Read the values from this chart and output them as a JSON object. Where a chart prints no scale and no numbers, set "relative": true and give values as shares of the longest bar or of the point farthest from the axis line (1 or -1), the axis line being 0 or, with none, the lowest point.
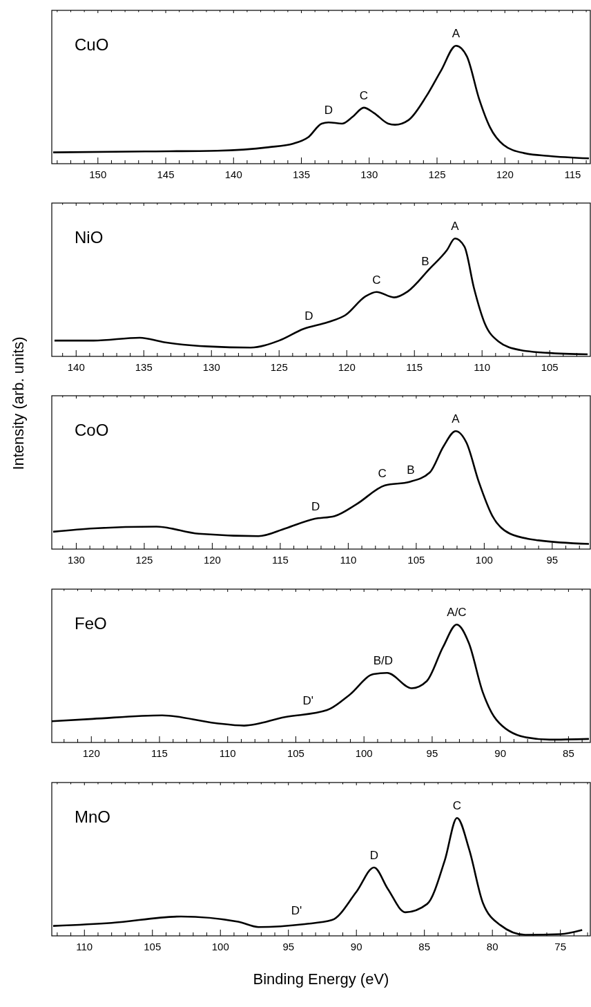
{
  "chart_data": [
    {
      "type": "line",
      "title": "CuO",
      "relative": true,
      "color": "#000000",
      "x": [
        153.3,
        146.5,
        141.2,
        137.4,
        135.6,
        134.5,
        133.5,
        133.0,
        132.0,
        131.2,
        130.4,
        129.65,
        128.6,
        128.1,
        127.1,
        125.8,
        124.7,
        123.6,
        122.8,
        121.9,
        121.1,
        120.1,
        118.6,
        116.8,
        113.8
      ],
      "values": [
        0.096,
        0.104,
        0.11,
        0.14,
        0.17,
        0.224,
        0.34,
        0.35,
        0.34,
        0.4,
        0.475,
        0.43,
        0.34,
        0.33,
        0.37,
        0.57,
        0.79,
        1.0,
        0.91,
        0.55,
        0.31,
        0.16,
        0.09,
        0.066,
        0.045
      ],
      "xlim": [
        153.4,
        113.7
      ],
      "xticks": [
        {
          "value": 153,
          "label": null
        },
        {
          "value": 152,
          "label": null
        },
        {
          "value": 151,
          "label": null
        },
        150,
        {
          "value": 149,
          "label": null
        },
        {
          "value": 148,
          "label": null
        },
        {
          "value": 147,
          "label": null
        },
        {
          "value": 146,
          "label": null
        },
        145,
        {
          "value": 144,
          "label": null
        },
        {
          "value": 143,
          "label": null
        },
        {
          "value": 142,
          "label": null
        },
        {
          "value": 141,
          "label": null
        },
        140,
        {
          "value": 139,
          "label": null
        },
        {
          "value": 138,
          "label": null
        },
        {
          "value": 137,
          "label": null
        },
        {
          "value": 136,
          "label": null
        },
        135,
        {
          "value": 134,
          "label": null
        },
        {
          "value": 133,
          "label": null
        },
        {
          "value": 132,
          "label": null
        },
        {
          "value": 131,
          "label": null
        },
        130,
        {
          "value": 129,
          "label": null
        },
        {
          "value": 128,
          "label": null
        },
        {
          "value": 127,
          "label": null
        },
        {
          "value": 126,
          "label": null
        },
        125,
        {
          "value": 124,
          "label": null
        },
        {
          "value": 123,
          "label": null
        },
        {
          "value": 122,
          "label": null
        },
        {
          "value": 121,
          "label": null
        },
        120,
        {
          "value": 119,
          "label": null
        },
        {
          "value": 118,
          "label": null
        },
        {
          "value": 117,
          "label": null
        },
        {
          "value": 116,
          "label": null
        },
        115,
        {
          "value": 114,
          "label": null
        }
      ],
      "annotations": [
        {
          "text": "D",
          "x": 133.0,
          "y": 0.35
        },
        {
          "text": "C",
          "x": 130.4,
          "y": 0.475
        },
        {
          "text": "A",
          "x": 123.6,
          "y": 1.0
        }
      ]
    },
    {
      "type": "line",
      "title": "NiO",
      "relative": true,
      "color": "#000000",
      "x": [
        141.6,
        138.7,
        135.3,
        133.5,
        130.2,
        127.1,
        125.0,
        123.2,
        121.4,
        120.1,
        118.6,
        117.8,
        116.5,
        115.5,
        113.9,
        112.6,
        112.0,
        111.3,
        110.6,
        109.8,
        108.8,
        107.2,
        105.2,
        102.2
      ],
      "values": [
        0.134,
        0.134,
        0.158,
        0.12,
        0.084,
        0.075,
        0.134,
        0.233,
        0.29,
        0.35,
        0.51,
        0.546,
        0.5,
        0.55,
        0.74,
        0.9,
        1.0,
        0.93,
        0.58,
        0.28,
        0.128,
        0.054,
        0.03,
        0.018
      ],
      "xlim": [
        141.8,
        102.0
      ],
      "xticks": [
        {
          "value": 141,
          "label": null
        },
        140,
        {
          "value": 139,
          "label": null
        },
        {
          "value": 138,
          "label": null
        },
        {
          "value": 137,
          "label": null
        },
        {
          "value": 136,
          "label": null
        },
        135,
        {
          "value": 134,
          "label": null
        },
        {
          "value": 133,
          "label": null
        },
        {
          "value": 132,
          "label": null
        },
        {
          "value": 131,
          "label": null
        },
        130,
        {
          "value": 129,
          "label": null
        },
        {
          "value": 128,
          "label": null
        },
        {
          "value": 127,
          "label": null
        },
        {
          "value": 126,
          "label": null
        },
        125,
        {
          "value": 124,
          "label": null
        },
        {
          "value": 123,
          "label": null
        },
        {
          "value": 122,
          "label": null
        },
        {
          "value": 121,
          "label": null
        },
        120,
        {
          "value": 119,
          "label": null
        },
        {
          "value": 118,
          "label": null
        },
        {
          "value": 117,
          "label": null
        },
        {
          "value": 116,
          "label": null
        },
        115,
        {
          "value": 114,
          "label": null
        },
        {
          "value": 113,
          "label": null
        },
        {
          "value": 112,
          "label": null
        },
        {
          "value": 111,
          "label": null
        },
        110,
        {
          "value": 109,
          "label": null
        },
        {
          "value": 108,
          "label": null
        },
        {
          "value": 107,
          "label": null
        },
        {
          "value": 106,
          "label": null
        },
        105,
        {
          "value": 104,
          "label": null
        },
        {
          "value": 103,
          "label": null
        }
      ],
      "annotations": [
        {
          "text": "D",
          "x": 122.8,
          "y": 0.24
        },
        {
          "text": "C",
          "x": 117.8,
          "y": 0.546
        },
        {
          "text": "B",
          "x": 114.2,
          "y": 0.7
        },
        {
          "text": "A",
          "x": 112.0,
          "y": 1.0
        }
      ]
    },
    {
      "type": "line",
      "title": "CoO",
      "relative": true,
      "color": "#000000",
      "ylabel": "Intensity (arb. units)",
      "x": [
        131.7,
        128.7,
        124.1,
        121.0,
        116.6,
        114.6,
        112.5,
        111.0,
        109.4,
        107.3,
        105.5,
        104.0,
        103.0,
        102.1,
        101.3,
        100.4,
        99.4,
        98.1,
        96.0,
        92.3
      ],
      "values": [
        0.147,
        0.176,
        0.19,
        0.13,
        0.11,
        0.176,
        0.256,
        0.28,
        0.38,
        0.54,
        0.57,
        0.65,
        0.87,
        1.0,
        0.9,
        0.57,
        0.28,
        0.13,
        0.074,
        0.044
      ],
      "xlim": [
        131.8,
        92.2
      ],
      "xticks": [
        {
          "value": 131,
          "label": null
        },
        130,
        {
          "value": 129,
          "label": null
        },
        {
          "value": 128,
          "label": null
        },
        {
          "value": 127,
          "label": null
        },
        {
          "value": 126,
          "label": null
        },
        125,
        {
          "value": 124,
          "label": null
        },
        {
          "value": 123,
          "label": null
        },
        {
          "value": 122,
          "label": null
        },
        {
          "value": 121,
          "label": null
        },
        120,
        {
          "value": 119,
          "label": null
        },
        {
          "value": 118,
          "label": null
        },
        {
          "value": 117,
          "label": null
        },
        {
          "value": 116,
          "label": null
        },
        115,
        {
          "value": 114,
          "label": null
        },
        {
          "value": 113,
          "label": null
        },
        {
          "value": 112,
          "label": null
        },
        {
          "value": 111,
          "label": null
        },
        110,
        {
          "value": 109,
          "label": null
        },
        {
          "value": 108,
          "label": null
        },
        {
          "value": 107,
          "label": null
        },
        {
          "value": 106,
          "label": null
        },
        105,
        {
          "value": 104,
          "label": null
        },
        {
          "value": 103,
          "label": null
        },
        {
          "value": 102,
          "label": null
        },
        {
          "value": 101,
          "label": null
        },
        100,
        {
          "value": 99,
          "label": null
        },
        {
          "value": 98,
          "label": null
        },
        {
          "value": 97,
          "label": null
        },
        {
          "value": 96,
          "label": null
        },
        95,
        {
          "value": 94,
          "label": null
        },
        {
          "value": 93,
          "label": null
        }
      ],
      "annotations": [
        {
          "text": "D",
          "x": 112.4,
          "y": 0.26
        },
        {
          "text": "C",
          "x": 107.5,
          "y": 0.54
        },
        {
          "text": "B",
          "x": 105.4,
          "y": 0.57
        },
        {
          "text": "A",
          "x": 102.1,
          "y": 1.0
        }
      ]
    },
    {
      "type": "line",
      "title": "FeO",
      "relative": true,
      "color": "#000000",
      "x": [
        122.9,
        119.9,
        114.8,
        110.9,
        108.8,
        105.8,
        102.7,
        101.1,
        99.3,
        98.3,
        96.5,
        95.4,
        94.2,
        93.2,
        92.3,
        91.3,
        90.3,
        88.2,
        86.4,
        83.5
      ],
      "values": [
        0.18,
        0.2,
        0.23,
        0.164,
        0.143,
        0.215,
        0.275,
        0.4,
        0.58,
        0.59,
        0.46,
        0.52,
        0.81,
        1.0,
        0.84,
        0.43,
        0.194,
        0.045,
        0.024,
        0.03
      ],
      "xlim": [
        122.9,
        83.4
      ],
      "xticks": [
        {
          "value": 122,
          "label": null
        },
        {
          "value": 121,
          "label": null
        },
        120,
        {
          "value": 119,
          "label": null
        },
        {
          "value": 118,
          "label": null
        },
        {
          "value": 117,
          "label": null
        },
        {
          "value": 116,
          "label": null
        },
        115,
        {
          "value": 114,
          "label": null
        },
        {
          "value": 113,
          "label": null
        },
        {
          "value": 112,
          "label": null
        },
        {
          "value": 111,
          "label": null
        },
        110,
        {
          "value": 109,
          "label": null
        },
        {
          "value": 108,
          "label": null
        },
        {
          "value": 107,
          "label": null
        },
        {
          "value": 106,
          "label": null
        },
        105,
        {
          "value": 104,
          "label": null
        },
        {
          "value": 103,
          "label": null
        },
        {
          "value": 102,
          "label": null
        },
        {
          "value": 101,
          "label": null
        },
        100,
        {
          "value": 99,
          "label": null
        },
        {
          "value": 98,
          "label": null
        },
        {
          "value": 97,
          "label": null
        },
        {
          "value": 96,
          "label": null
        },
        95,
        {
          "value": 94,
          "label": null
        },
        {
          "value": 93,
          "label": null
        },
        {
          "value": 92,
          "label": null
        },
        {
          "value": 91,
          "label": null
        },
        90,
        {
          "value": 89,
          "label": null
        },
        {
          "value": 88,
          "label": null
        },
        {
          "value": 87,
          "label": null
        },
        {
          "value": 86,
          "label": null
        },
        85,
        {
          "value": 84,
          "label": null
        }
      ],
      "annotations": [
        {
          "text": "D'",
          "x": 104.1,
          "y": 0.25
        },
        {
          "text": "B/D",
          "x": 98.6,
          "y": 0.59
        },
        {
          "text": "A/C",
          "x": 93.2,
          "y": 1.0
        }
      ]
    },
    {
      "type": "line",
      "title": "MnO",
      "relative": true,
      "color": "#000000",
      "xlabel": "Binding Energy (eV)",
      "x": [
        112.3,
        108.0,
        102.9,
        98.7,
        97.2,
        93.8,
        91.8,
        90.0,
        88.7,
        87.7,
        86.4,
        84.8,
        83.5,
        82.6,
        81.7,
        80.7,
        79.4,
        77.6,
        75.0,
        73.4
      ],
      "values": [
        0.084,
        0.11,
        0.164,
        0.12,
        0.075,
        0.1,
        0.134,
        0.373,
        0.58,
        0.4,
        0.2,
        0.27,
        0.64,
        1.0,
        0.73,
        0.28,
        0.09,
        0.009,
        0.015,
        0.05
      ],
      "xlim": [
        112.4,
        72.8
      ],
      "xticks": [
        {
          "value": 112,
          "label": null
        },
        {
          "value": 111,
          "label": null
        },
        110,
        {
          "value": 109,
          "label": null
        },
        {
          "value": 108,
          "label": null
        },
        {
          "value": 107,
          "label": null
        },
        {
          "value": 106,
          "label": null
        },
        105,
        {
          "value": 104,
          "label": null
        },
        {
          "value": 103,
          "label": null
        },
        {
          "value": 102,
          "label": null
        },
        {
          "value": 101,
          "label": null
        },
        100,
        {
          "value": 99,
          "label": null
        },
        {
          "value": 98,
          "label": null
        },
        {
          "value": 97,
          "label": null
        },
        {
          "value": 96,
          "label": null
        },
        95,
        {
          "value": 94,
          "label": null
        },
        {
          "value": 93,
          "label": null
        },
        {
          "value": 92,
          "label": null
        },
        {
          "value": 91,
          "label": null
        },
        90,
        {
          "value": 89,
          "label": null
        },
        {
          "value": 88,
          "label": null
        },
        {
          "value": 87,
          "label": null
        },
        {
          "value": 86,
          "label": null
        },
        85,
        {
          "value": 84,
          "label": null
        },
        {
          "value": 83,
          "label": null
        },
        {
          "value": 82,
          "label": null
        },
        {
          "value": 81,
          "label": null
        },
        80,
        {
          "value": 79,
          "label": null
        },
        {
          "value": 78,
          "label": null
        },
        {
          "value": 77,
          "label": null
        },
        {
          "value": 76,
          "label": null
        },
        75,
        {
          "value": 74,
          "label": null
        },
        {
          "value": 73,
          "label": null
        }
      ],
      "annotations": [
        {
          "text": "D'",
          "x": 94.4,
          "y": 0.11
        },
        {
          "text": "D",
          "x": 88.7,
          "y": 0.58
        },
        {
          "text": "C",
          "x": 82.6,
          "y": 1.0
        }
      ]
    }
  ]
}
